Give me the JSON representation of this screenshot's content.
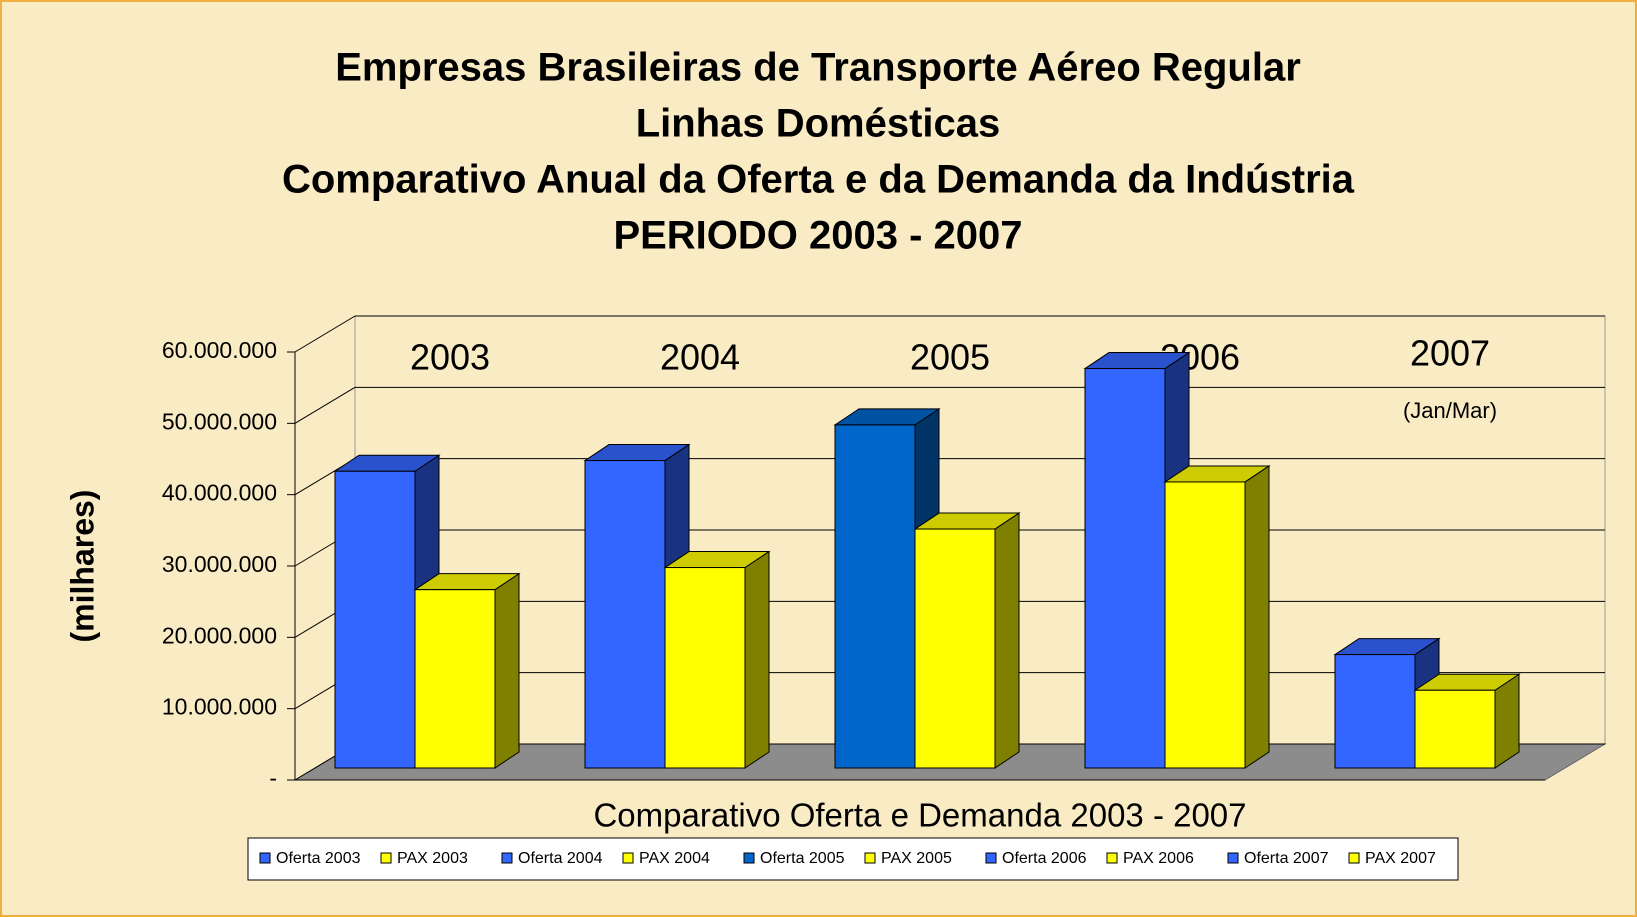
{
  "chart_data": {
    "type": "bar3d",
    "title_lines": [
      "Empresas Brasileiras de Transporte Aéreo Regular",
      "Linhas Domésticas",
      "Comparativo Anual da Oferta e da Demanda da Indústria",
      "PERIODO 2003 - 2007"
    ],
    "y_label": "(milhares)",
    "x_label": "Comparativo Oferta e Demanda 2003 - 2007",
    "categories": [
      "2003",
      "2004",
      "2005",
      "2006",
      "2007"
    ],
    "annotation": "(Jan/Mar)",
    "ylim": [
      0,
      60000000
    ],
    "yticks": [
      {
        "value": 0,
        "label": "-"
      },
      {
        "value": 10000000,
        "label": "10.000.000"
      },
      {
        "value": 20000000,
        "label": "20.000.000"
      },
      {
        "value": 30000000,
        "label": "30.000.000"
      },
      {
        "value": 40000000,
        "label": "40.000.000"
      },
      {
        "value": 50000000,
        "label": "50.000.000"
      },
      {
        "value": 60000000,
        "label": "60.000.000"
      }
    ],
    "grid": true,
    "legend": "bottom",
    "series": [
      {
        "name": "Oferta 2003",
        "color": "#3366ff",
        "values": [
          41600000,
          null,
          null,
          null,
          null
        ]
      },
      {
        "name": "PAX 2003",
        "color": "#ffff00",
        "values": [
          25000000,
          null,
          null,
          null,
          null
        ]
      },
      {
        "name": "Oferta 2004",
        "color": "#3366ff",
        "values": [
          null,
          43100000,
          null,
          null,
          null
        ]
      },
      {
        "name": "PAX 2004",
        "color": "#ffff00",
        "values": [
          null,
          28100000,
          null,
          null,
          null
        ]
      },
      {
        "name": "Oferta 2005",
        "color": "#0066cc",
        "values": [
          null,
          null,
          48100000,
          null,
          null
        ]
      },
      {
        "name": "PAX 2005",
        "color": "#ffff00",
        "values": [
          null,
          null,
          33500000,
          null,
          null
        ]
      },
      {
        "name": "Oferta 2006",
        "color": "#3366ff",
        "values": [
          null,
          null,
          null,
          56000000,
          null
        ]
      },
      {
        "name": "PAX 2006",
        "color": "#ffff00",
        "values": [
          null,
          null,
          null,
          40100000,
          null
        ]
      },
      {
        "name": "Oferta 2007",
        "color": "#3366ff",
        "values": [
          null,
          null,
          null,
          null,
          15900000
        ]
      },
      {
        "name": "PAX 2007",
        "color": "#ffff00",
        "values": [
          null,
          null,
          null,
          null,
          10900000
        ]
      }
    ]
  }
}
